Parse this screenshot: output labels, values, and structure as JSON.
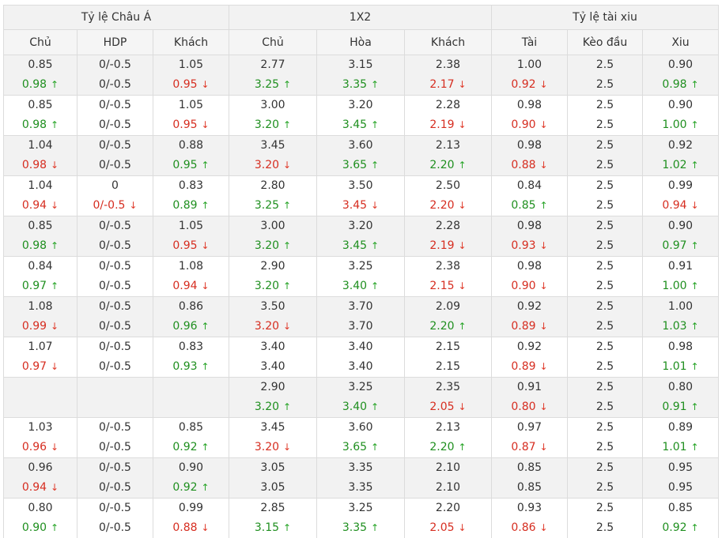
{
  "colors": {
    "up": "#1f8f1f",
    "down": "#d62d20",
    "header_bg": "#f2f2f2",
    "border": "#dcdcdc"
  },
  "icons": {
    "up": "arrow-up-icon",
    "down": "arrow-down-icon"
  },
  "arrows": {
    "up": "↑",
    "down": "↓"
  },
  "groups": [
    "Tỷ lệ Châu Á",
    "1X2",
    "Tỷ lệ tài xiu"
  ],
  "columns": [
    "Chủ",
    "HDP",
    "Khách",
    "Chủ",
    "Hòa",
    "Khách",
    "Tài",
    "Kèo đầu",
    "Xiu"
  ],
  "rows": [
    {
      "cells": [
        {
          "open": "0.85",
          "now": "0.98",
          "dir": "up"
        },
        {
          "open": "0/-0.5",
          "now": "0/-0.5",
          "dir": ""
        },
        {
          "open": "1.05",
          "now": "0.95",
          "dir": "down"
        },
        {
          "open": "2.77",
          "now": "3.25",
          "dir": "up"
        },
        {
          "open": "3.15",
          "now": "3.35",
          "dir": "up"
        },
        {
          "open": "2.38",
          "now": "2.17",
          "dir": "down"
        },
        {
          "open": "1.00",
          "now": "0.92",
          "dir": "down"
        },
        {
          "open": "2.5",
          "now": "2.5",
          "dir": ""
        },
        {
          "open": "0.90",
          "now": "0.98",
          "dir": "up"
        }
      ]
    },
    {
      "cells": [
        {
          "open": "0.85",
          "now": "0.98",
          "dir": "up"
        },
        {
          "open": "0/-0.5",
          "now": "0/-0.5",
          "dir": ""
        },
        {
          "open": "1.05",
          "now": "0.95",
          "dir": "down"
        },
        {
          "open": "3.00",
          "now": "3.20",
          "dir": "up"
        },
        {
          "open": "3.20",
          "now": "3.45",
          "dir": "up"
        },
        {
          "open": "2.28",
          "now": "2.19",
          "dir": "down"
        },
        {
          "open": "0.98",
          "now": "0.90",
          "dir": "down"
        },
        {
          "open": "2.5",
          "now": "2.5",
          "dir": ""
        },
        {
          "open": "0.90",
          "now": "1.00",
          "dir": "up"
        }
      ]
    },
    {
      "cells": [
        {
          "open": "1.04",
          "now": "0.98",
          "dir": "down"
        },
        {
          "open": "0/-0.5",
          "now": "0/-0.5",
          "dir": ""
        },
        {
          "open": "0.88",
          "now": "0.95",
          "dir": "up"
        },
        {
          "open": "3.45",
          "now": "3.20",
          "dir": "down"
        },
        {
          "open": "3.60",
          "now": "3.65",
          "dir": "up"
        },
        {
          "open": "2.13",
          "now": "2.20",
          "dir": "up"
        },
        {
          "open": "0.98",
          "now": "0.88",
          "dir": "down"
        },
        {
          "open": "2.5",
          "now": "2.5",
          "dir": ""
        },
        {
          "open": "0.92",
          "now": "1.02",
          "dir": "up"
        }
      ]
    },
    {
      "cells": [
        {
          "open": "1.04",
          "now": "0.94",
          "dir": "down"
        },
        {
          "open": "0",
          "now": "0/-0.5",
          "dir": "down"
        },
        {
          "open": "0.83",
          "now": "0.89",
          "dir": "up"
        },
        {
          "open": "2.80",
          "now": "3.25",
          "dir": "up"
        },
        {
          "open": "3.50",
          "now": "3.45",
          "dir": "down"
        },
        {
          "open": "2.50",
          "now": "2.20",
          "dir": "down"
        },
        {
          "open": "0.84",
          "now": "0.85",
          "dir": "up"
        },
        {
          "open": "2.5",
          "now": "2.5",
          "dir": ""
        },
        {
          "open": "0.99",
          "now": "0.94",
          "dir": "down"
        }
      ]
    },
    {
      "cells": [
        {
          "open": "0.85",
          "now": "0.98",
          "dir": "up"
        },
        {
          "open": "0/-0.5",
          "now": "0/-0.5",
          "dir": ""
        },
        {
          "open": "1.05",
          "now": "0.95",
          "dir": "down"
        },
        {
          "open": "3.00",
          "now": "3.20",
          "dir": "up"
        },
        {
          "open": "3.20",
          "now": "3.45",
          "dir": "up"
        },
        {
          "open": "2.28",
          "now": "2.19",
          "dir": "down"
        },
        {
          "open": "0.98",
          "now": "0.93",
          "dir": "down"
        },
        {
          "open": "2.5",
          "now": "2.5",
          "dir": ""
        },
        {
          "open": "0.90",
          "now": "0.97",
          "dir": "up"
        }
      ]
    },
    {
      "cells": [
        {
          "open": "0.84",
          "now": "0.97",
          "dir": "up"
        },
        {
          "open": "0/-0.5",
          "now": "0/-0.5",
          "dir": ""
        },
        {
          "open": "1.08",
          "now": "0.94",
          "dir": "down"
        },
        {
          "open": "2.90",
          "now": "3.20",
          "dir": "up"
        },
        {
          "open": "3.25",
          "now": "3.40",
          "dir": "up"
        },
        {
          "open": "2.38",
          "now": "2.15",
          "dir": "down"
        },
        {
          "open": "0.98",
          "now": "0.90",
          "dir": "down"
        },
        {
          "open": "2.5",
          "now": "2.5",
          "dir": ""
        },
        {
          "open": "0.91",
          "now": "1.00",
          "dir": "up"
        }
      ]
    },
    {
      "cells": [
        {
          "open": "1.08",
          "now": "0.99",
          "dir": "down"
        },
        {
          "open": "0/-0.5",
          "now": "0/-0.5",
          "dir": ""
        },
        {
          "open": "0.86",
          "now": "0.96",
          "dir": "up"
        },
        {
          "open": "3.50",
          "now": "3.20",
          "dir": "down"
        },
        {
          "open": "3.70",
          "now": "3.70",
          "dir": ""
        },
        {
          "open": "2.09",
          "now": "2.20",
          "dir": "up"
        },
        {
          "open": "0.92",
          "now": "0.89",
          "dir": "down"
        },
        {
          "open": "2.5",
          "now": "2.5",
          "dir": ""
        },
        {
          "open": "1.00",
          "now": "1.03",
          "dir": "up"
        }
      ]
    },
    {
      "cells": [
        {
          "open": "1.07",
          "now": "0.97",
          "dir": "down"
        },
        {
          "open": "0/-0.5",
          "now": "0/-0.5",
          "dir": ""
        },
        {
          "open": "0.83",
          "now": "0.93",
          "dir": "up"
        },
        {
          "open": "3.40",
          "now": "3.40",
          "dir": ""
        },
        {
          "open": "3.40",
          "now": "3.40",
          "dir": ""
        },
        {
          "open": "2.15",
          "now": "2.15",
          "dir": ""
        },
        {
          "open": "0.92",
          "now": "0.89",
          "dir": "down"
        },
        {
          "open": "2.5",
          "now": "2.5",
          "dir": ""
        },
        {
          "open": "0.98",
          "now": "1.01",
          "dir": "up"
        }
      ]
    },
    {
      "cells": [
        {
          "open": "",
          "now": "",
          "dir": ""
        },
        {
          "open": "",
          "now": "",
          "dir": ""
        },
        {
          "open": "",
          "now": "",
          "dir": ""
        },
        {
          "open": "2.90",
          "now": "3.20",
          "dir": "up"
        },
        {
          "open": "3.25",
          "now": "3.40",
          "dir": "up"
        },
        {
          "open": "2.35",
          "now": "2.05",
          "dir": "down"
        },
        {
          "open": "0.91",
          "now": "0.80",
          "dir": "down"
        },
        {
          "open": "2.5",
          "now": "2.5",
          "dir": ""
        },
        {
          "open": "0.80",
          "now": "0.91",
          "dir": "up"
        }
      ]
    },
    {
      "cells": [
        {
          "open": "1.03",
          "now": "0.96",
          "dir": "down"
        },
        {
          "open": "0/-0.5",
          "now": "0/-0.5",
          "dir": ""
        },
        {
          "open": "0.85",
          "now": "0.92",
          "dir": "up"
        },
        {
          "open": "3.45",
          "now": "3.20",
          "dir": "down"
        },
        {
          "open": "3.60",
          "now": "3.65",
          "dir": "up"
        },
        {
          "open": "2.13",
          "now": "2.20",
          "dir": "up"
        },
        {
          "open": "0.97",
          "now": "0.87",
          "dir": "down"
        },
        {
          "open": "2.5",
          "now": "2.5",
          "dir": ""
        },
        {
          "open": "0.89",
          "now": "1.01",
          "dir": "up"
        }
      ]
    },
    {
      "cells": [
        {
          "open": "0.96",
          "now": "0.94",
          "dir": "down"
        },
        {
          "open": "0/-0.5",
          "now": "0/-0.5",
          "dir": ""
        },
        {
          "open": "0.90",
          "now": "0.92",
          "dir": "up"
        },
        {
          "open": "3.05",
          "now": "3.05",
          "dir": ""
        },
        {
          "open": "3.35",
          "now": "3.35",
          "dir": ""
        },
        {
          "open": "2.10",
          "now": "2.10",
          "dir": ""
        },
        {
          "open": "0.85",
          "now": "0.85",
          "dir": ""
        },
        {
          "open": "2.5",
          "now": "2.5",
          "dir": ""
        },
        {
          "open": "0.95",
          "now": "0.95",
          "dir": ""
        }
      ]
    },
    {
      "cells": [
        {
          "open": "0.80",
          "now": "0.90",
          "dir": "up"
        },
        {
          "open": "0/-0.5",
          "now": "0/-0.5",
          "dir": ""
        },
        {
          "open": "0.99",
          "now": "0.88",
          "dir": "down"
        },
        {
          "open": "2.85",
          "now": "3.15",
          "dir": "up"
        },
        {
          "open": "3.25",
          "now": "3.35",
          "dir": "up"
        },
        {
          "open": "2.20",
          "now": "2.05",
          "dir": "down"
        },
        {
          "open": "0.93",
          "now": "0.86",
          "dir": "down"
        },
        {
          "open": "2.5",
          "now": "2.5",
          "dir": ""
        },
        {
          "open": "0.85",
          "now": "0.92",
          "dir": "up"
        }
      ]
    }
  ]
}
